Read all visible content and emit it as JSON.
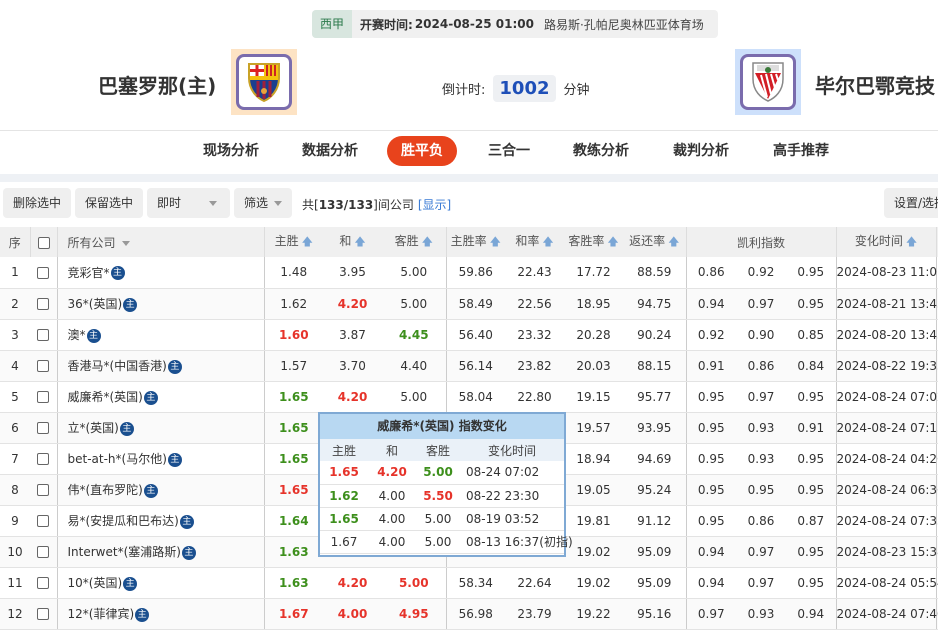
{
  "match": {
    "league": "西甲",
    "start_label": "开赛时间:",
    "start_time": "2024-08-25 01:00",
    "venue": "路易斯·孔帕尼奥林匹亚体育场",
    "home": "巴塞罗那(主)",
    "away": "毕尔巴鄂竞技",
    "countdown_label": "倒计时:",
    "countdown": "1002",
    "countdown_unit": "分钟"
  },
  "nav": [
    "现场分析",
    "数据分析",
    "胜平负",
    "三合一",
    "教练分析",
    "裁判分析",
    "高手推荐"
  ],
  "nav_active": 2,
  "toolbar": {
    "delete": "删除选中",
    "keep": "保留选中",
    "mode": "即时",
    "filter": "筛选",
    "summary_pre": "共[",
    "count": "133/133",
    "summary_post": "]间公司",
    "show": "[显示]",
    "settings": "设置/选择"
  },
  "headers": {
    "no": "序",
    "company": "所有公司",
    "h": "主胜",
    "d": "和",
    "a": "客胜",
    "hr": "主胜率",
    "dr": "和率",
    "ar": "客胜率",
    "ret": "返还率",
    "kelly": "凯利指数",
    "time": "变化时间"
  },
  "colors": {
    "red": "#e6332a",
    "green": "#3d8f1c",
    "accent": "#e8431c"
  },
  "rows": [
    {
      "no": "1",
      "company": "竞彩官*",
      "odds": [
        [
          "1.48",
          ""
        ],
        [
          "3.95",
          ""
        ],
        [
          "5.00",
          ""
        ]
      ],
      "rates": [
        "59.86",
        "22.43",
        "17.72",
        "88.59"
      ],
      "kelly": [
        "0.86",
        "0.92",
        "0.95"
      ],
      "time": "2024-08-23 11:01"
    },
    {
      "no": "2",
      "company": "36*(英国)",
      "odds": [
        [
          "1.62",
          ""
        ],
        [
          "4.20",
          "r"
        ],
        [
          "5.00",
          ""
        ]
      ],
      "rates": [
        "58.49",
        "22.56",
        "18.95",
        "94.75"
      ],
      "kelly": [
        "0.94",
        "0.97",
        "0.95"
      ],
      "time": "2024-08-21 13:45"
    },
    {
      "no": "3",
      "company": "澳*",
      "odds": [
        [
          "1.60",
          "r"
        ],
        [
          "3.87",
          ""
        ],
        [
          "4.45",
          "g"
        ]
      ],
      "rates": [
        "56.40",
        "23.32",
        "20.28",
        "90.24"
      ],
      "kelly": [
        "0.92",
        "0.90",
        "0.85"
      ],
      "time": "2024-08-20 13:45"
    },
    {
      "no": "4",
      "company": "香港马*(中国香港)",
      "odds": [
        [
          "1.57",
          ""
        ],
        [
          "3.70",
          ""
        ],
        [
          "4.40",
          ""
        ]
      ],
      "rates": [
        "56.14",
        "23.82",
        "20.03",
        "88.15"
      ],
      "kelly": [
        "0.91",
        "0.86",
        "0.84"
      ],
      "time": "2024-08-22 19:33"
    },
    {
      "no": "5",
      "company": "威廉希*(英国)",
      "odds": [
        [
          "1.65",
          "g"
        ],
        [
          "4.20",
          "r"
        ],
        [
          "5.00",
          ""
        ]
      ],
      "rates": [
        "58.04",
        "22.80",
        "19.15",
        "95.77"
      ],
      "kelly": [
        "0.95",
        "0.97",
        "0.95"
      ],
      "time": "2024-08-24 07:02"
    },
    {
      "no": "6",
      "company": "立*(英国)",
      "odds": [
        [
          "1.65",
          "g"
        ],
        [
          "",
          ""
        ],
        [
          "",
          ""
        ]
      ],
      "rates": [
        "",
        "",
        "19.57",
        "93.95"
      ],
      "kelly": [
        "0.95",
        "0.93",
        "0.91"
      ],
      "time": "2024-08-24 07:15"
    },
    {
      "no": "7",
      "company": "bet-at-h*(马尔他)",
      "odds": [
        [
          "1.65",
          "g"
        ],
        [
          "",
          ""
        ],
        [
          "",
          ""
        ]
      ],
      "rates": [
        "",
        "",
        "18.94",
        "94.69"
      ],
      "kelly": [
        "0.95",
        "0.93",
        "0.95"
      ],
      "time": "2024-08-24 04:26"
    },
    {
      "no": "8",
      "company": "伟*(直布罗陀)",
      "odds": [
        [
          "1.65",
          "r"
        ],
        [
          "",
          ""
        ],
        [
          "",
          ""
        ]
      ],
      "rates": [
        "",
        "",
        "19.05",
        "95.24"
      ],
      "kelly": [
        "0.95",
        "0.95",
        "0.95"
      ],
      "time": "2024-08-24 06:36"
    },
    {
      "no": "9",
      "company": "易*(安提瓜和巴布达)",
      "odds": [
        [
          "1.64",
          "g"
        ],
        [
          "",
          ""
        ],
        [
          "",
          ""
        ]
      ],
      "rates": [
        "",
        "",
        "19.81",
        "91.12"
      ],
      "kelly": [
        "0.95",
        "0.86",
        "0.87"
      ],
      "time": "2024-08-24 07:33"
    },
    {
      "no": "10",
      "company": "Interwet*(塞浦路斯)",
      "odds": [
        [
          "1.63",
          "g"
        ],
        [
          "",
          ""
        ],
        [
          "",
          ""
        ]
      ],
      "rates": [
        "",
        "",
        "19.02",
        "95.09"
      ],
      "kelly": [
        "0.94",
        "0.97",
        "0.95"
      ],
      "time": "2024-08-23 15:38"
    },
    {
      "no": "11",
      "company": "10*(英国)",
      "odds": [
        [
          "1.63",
          "g"
        ],
        [
          "4.20",
          "r"
        ],
        [
          "5.00",
          "r"
        ]
      ],
      "rates": [
        "58.34",
        "22.64",
        "19.02",
        "95.09"
      ],
      "kelly": [
        "0.94",
        "0.97",
        "0.95"
      ],
      "time": "2024-08-24 05:54"
    },
    {
      "no": "12",
      "company": "12*(菲律宾)",
      "odds": [
        [
          "1.67",
          "r"
        ],
        [
          "4.00",
          "r"
        ],
        [
          "4.95",
          "r"
        ]
      ],
      "rates": [
        "56.98",
        "23.79",
        "19.22",
        "95.16"
      ],
      "kelly": [
        "0.97",
        "0.93",
        "0.94"
      ],
      "time": "2024-08-24 07:40"
    }
  ],
  "badge": "主",
  "tooltip": {
    "title": "威廉希*(英国) 指数变化",
    "headers": [
      "主胜",
      "和",
      "客胜",
      "变化时间"
    ],
    "rows": [
      [
        [
          "1.65",
          "r"
        ],
        [
          "4.20",
          "r"
        ],
        [
          "5.00",
          "g"
        ],
        "08-24 07:02"
      ],
      [
        [
          "1.62",
          "g"
        ],
        [
          "4.00",
          ""
        ],
        [
          "5.50",
          "r"
        ],
        "08-22 23:30"
      ],
      [
        [
          "1.65",
          "g"
        ],
        [
          "4.00",
          ""
        ],
        [
          "5.00",
          ""
        ],
        "08-19 03:52"
      ],
      [
        [
          "1.67",
          ""
        ],
        [
          "4.00",
          ""
        ],
        [
          "5.00",
          ""
        ],
        "08-13 16:37(初指)"
      ]
    ]
  }
}
